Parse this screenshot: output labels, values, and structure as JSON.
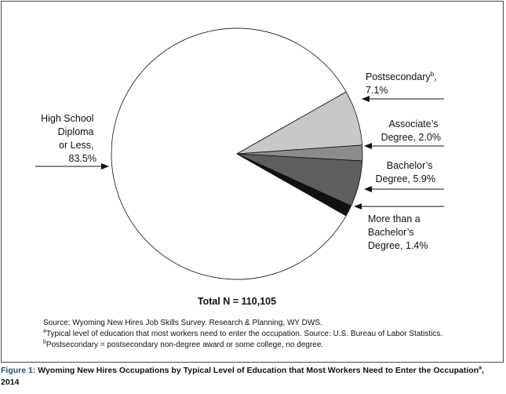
{
  "chart_data": {
    "type": "pie",
    "total_label": "Total N = 110,105",
    "slices": [
      {
        "name": "High School Diploma or Less",
        "value": 83.5,
        "label_lines": [
          "High School",
          "Diploma",
          "or Less,",
          "83.5%"
        ],
        "color": "#ffffff"
      },
      {
        "name": "Postsecondary",
        "value": 7.1,
        "label_lines": [
          "Postsecondary",
          "7.1%"
        ],
        "label_sup": "b",
        "label_suffix": ",",
        "color": "#c8c8c8"
      },
      {
        "name": "Associate's Degree",
        "value": 2.0,
        "label_lines": [
          "Associate’s",
          "Degree, 2.0%"
        ],
        "color": "#8c8c8c"
      },
      {
        "name": "Bachelor's Degree",
        "value": 5.9,
        "label_lines": [
          "Bachelor’s",
          "Degree, 5.9%"
        ],
        "color": "#5e5e5e"
      },
      {
        "name": "More than a Bachelor's Degree",
        "value": 1.4,
        "label_lines": [
          "More than a",
          "Bachelor’s",
          "Degree, 1.4%"
        ],
        "color": "#111111"
      }
    ]
  },
  "notes": {
    "source": "Source: Wyoming New Hires Job Skills Survey. Research & Planning, WY DWS.",
    "note_a_mark": "a",
    "note_a": "Typical level of education that most workers need to enter the occupation. Source: U.S. Bureau of Labor Statistics.",
    "note_b_mark": "b",
    "note_b": "Postsecondary = postsecondary non-degree award or some college, no degree."
  },
  "caption": {
    "figure": "Figure 1:",
    "title": " Wyoming New Hires Occupations by Typical Level of Education that Most Workers Need to Enter the Occupation",
    "sup": "a",
    "year": ", 2014"
  },
  "colors": {
    "border": "#4a4a4a",
    "figure_label": "#1f4e8c"
  }
}
